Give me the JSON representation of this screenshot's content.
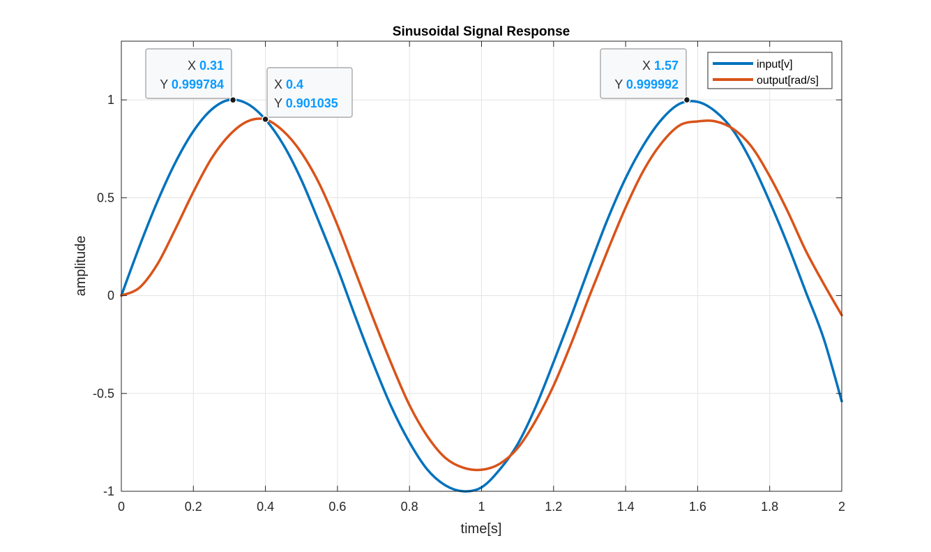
{
  "chart_data": {
    "type": "line",
    "title": "Sinusoidal Signal Response",
    "xlabel": "time[s]",
    "ylabel": "amplitude",
    "xlim": [
      0,
      2
    ],
    "ylim": [
      -1,
      1.3
    ],
    "xticks": [
      0,
      0.2,
      0.4,
      0.6,
      0.8,
      1,
      1.2,
      1.4,
      1.6,
      1.8,
      2
    ],
    "xtick_labels": [
      "0",
      "0.2",
      "0.4",
      "0.6",
      "0.8",
      "1",
      "1.2",
      "1.4",
      "1.6",
      "1.8",
      "2"
    ],
    "yticks": [
      -1,
      -0.5,
      0,
      0.5,
      1
    ],
    "ytick_labels": [
      "-1",
      "-0.5",
      "0",
      "0.5",
      "1"
    ],
    "grid": true,
    "legend_location": "top-right",
    "series": [
      {
        "name": "input[v]",
        "color": "#0072BD",
        "x": [
          0,
          0.05,
          0.1,
          0.15,
          0.2,
          0.25,
          0.3,
          0.35,
          0.4,
          0.45,
          0.5,
          0.55,
          0.6,
          0.65,
          0.7,
          0.75,
          0.8,
          0.85,
          0.9,
          0.95,
          1.0,
          1.05,
          1.1,
          1.15,
          1.2,
          1.25,
          1.3,
          1.35,
          1.4,
          1.45,
          1.5,
          1.55,
          1.6,
          1.65,
          1.7,
          1.75,
          1.8,
          1.85,
          1.9,
          1.95,
          2.0
        ],
        "y": [
          0,
          0.25,
          0.48,
          0.68,
          0.84,
          0.95,
          1.0,
          0.98,
          0.9,
          0.77,
          0.59,
          0.37,
          0.14,
          -0.11,
          -0.35,
          -0.57,
          -0.75,
          -0.89,
          -0.97,
          -1.0,
          -0.98,
          -0.89,
          -0.76,
          -0.57,
          -0.34,
          -0.1,
          0.15,
          0.39,
          0.6,
          0.77,
          0.9,
          0.98,
          0.99,
          0.94,
          0.84,
          0.68,
          0.48,
          0.26,
          0.02,
          -0.22,
          -0.54
        ]
      },
      {
        "name": "output[rad/s]",
        "color": "#D95319",
        "x": [
          0,
          0.05,
          0.1,
          0.15,
          0.2,
          0.25,
          0.3,
          0.35,
          0.4,
          0.45,
          0.5,
          0.55,
          0.6,
          0.65,
          0.7,
          0.75,
          0.8,
          0.85,
          0.9,
          0.95,
          1.0,
          1.05,
          1.1,
          1.15,
          1.2,
          1.25,
          1.3,
          1.35,
          1.4,
          1.45,
          1.5,
          1.55,
          1.6,
          1.65,
          1.7,
          1.75,
          1.8,
          1.85,
          1.9,
          1.95,
          2.0
        ],
        "y": [
          0,
          0.04,
          0.16,
          0.34,
          0.53,
          0.7,
          0.82,
          0.89,
          0.9,
          0.84,
          0.73,
          0.57,
          0.36,
          0.12,
          -0.12,
          -0.35,
          -0.56,
          -0.72,
          -0.83,
          -0.88,
          -0.89,
          -0.86,
          -0.78,
          -0.64,
          -0.46,
          -0.24,
          0.0,
          0.23,
          0.45,
          0.64,
          0.78,
          0.87,
          0.89,
          0.89,
          0.85,
          0.76,
          0.61,
          0.43,
          0.23,
          0.06,
          -0.1
        ]
      }
    ],
    "datatips": [
      {
        "x_label": "X",
        "y_label": "Y",
        "x_text": "0.31",
        "y_text": "0.999784",
        "x": 0.31,
        "y": 0.999784
      },
      {
        "x_label": "X",
        "y_label": "Y",
        "x_text": "0.4",
        "y_text": "0.901035",
        "x": 0.4,
        "y": 0.901035
      },
      {
        "x_label": "X",
        "y_label": "Y",
        "x_text": "1.57",
        "y_text": "0.999992",
        "x": 1.57,
        "y": 0.999992
      }
    ]
  }
}
